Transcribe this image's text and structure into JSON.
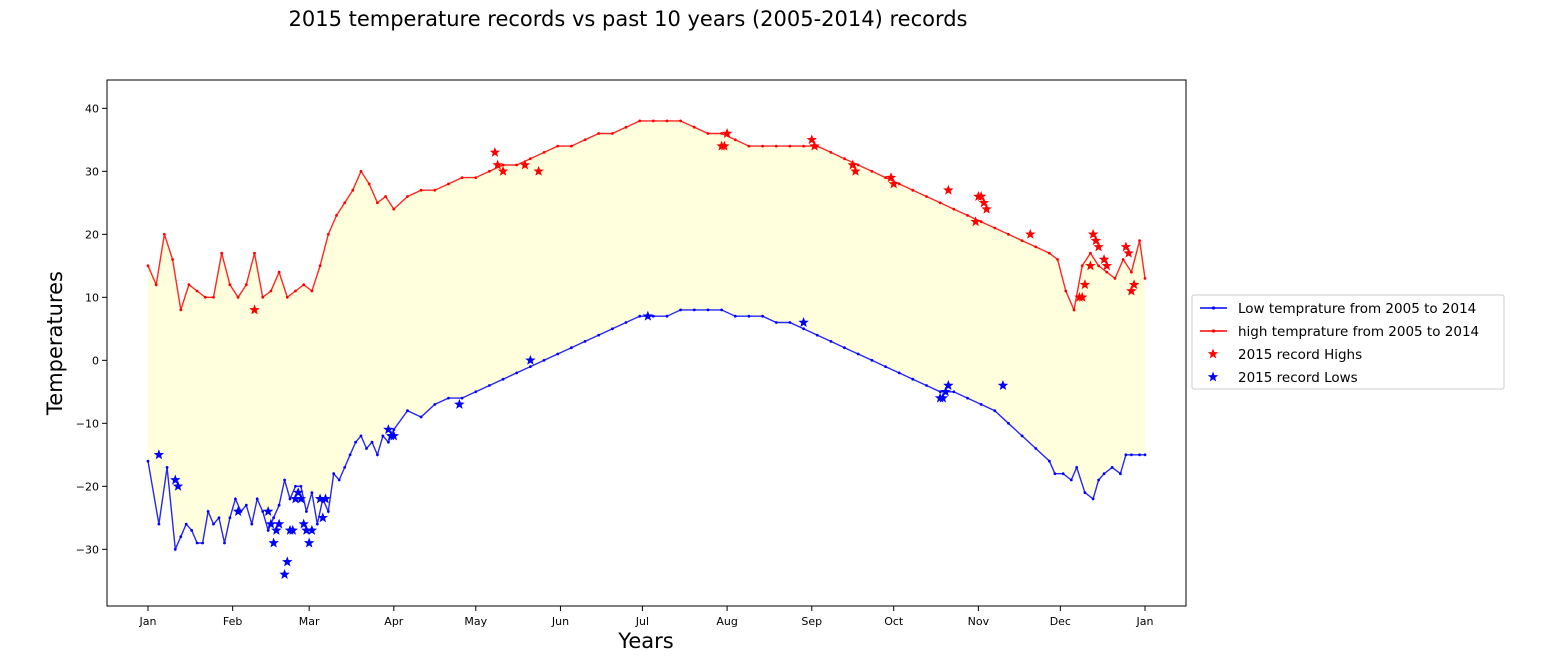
{
  "chart_data": {
    "type": "line",
    "title": "2015 temperature records vs past 10 years (2005-2014) records",
    "xlabel": "Years",
    "ylabel": "Temperatures",
    "ylim": [
      -39,
      44.5
    ],
    "xlim": [
      -15,
      380
    ],
    "yticks": [
      -30,
      -20,
      -10,
      0,
      10,
      20,
      30,
      40
    ],
    "ytick_labels": [
      "−30",
      "−20",
      "−10",
      "0",
      "10",
      "20",
      "30",
      "40"
    ],
    "xticks": [
      0,
      31,
      59,
      90,
      120,
      151,
      181,
      212,
      243,
      273,
      304,
      334,
      365
    ],
    "xtick_labels": [
      "Jan",
      "Feb",
      "Mar",
      "Apr",
      "May",
      "Jun",
      "Jul",
      "Aug",
      "Sep",
      "Oct",
      "Nov",
      "Dec",
      "Jan"
    ],
    "grid": false,
    "fill_between": {
      "color": "#ffffdd",
      "between": [
        "high",
        "low"
      ]
    },
    "legend_position": "right (outside)",
    "series": [
      {
        "id": "low",
        "name": "Low temprature from 2005 to 2014",
        "color": "#0000ff",
        "marker": "dot",
        "x": [
          0,
          4,
          7,
          10,
          12,
          14,
          16,
          18,
          20,
          22,
          24,
          26,
          28,
          30,
          32,
          34,
          36,
          38,
          40,
          42,
          44,
          46,
          48,
          50,
          52,
          54,
          56,
          58,
          60,
          62,
          64,
          66,
          68,
          70,
          72,
          74,
          76,
          78,
          80,
          82,
          84,
          86,
          88,
          90,
          95,
          100,
          105,
          110,
          115,
          120,
          125,
          130,
          135,
          140,
          145,
          150,
          155,
          160,
          165,
          170,
          175,
          180,
          185,
          190,
          195,
          200,
          205,
          210,
          215,
          220,
          225,
          230,
          235,
          240,
          245,
          250,
          255,
          260,
          265,
          270,
          275,
          280,
          285,
          290,
          295,
          300,
          305,
          310,
          315,
          320,
          325,
          330,
          332,
          335,
          338,
          340,
          343,
          346,
          348,
          350,
          353,
          356,
          358,
          360,
          363,
          365
        ],
        "y": [
          -16,
          -26,
          -17,
          -30,
          -28,
          -26,
          -27,
          -29,
          -29,
          -24,
          -26,
          -25,
          -29,
          -25,
          -22,
          -24,
          -23,
          -26,
          -22,
          -24,
          -27,
          -25,
          -23,
          -19,
          -22,
          -20,
          -20,
          -24,
          -21,
          -26,
          -22,
          -24,
          -18,
          -19,
          -17,
          -15,
          -13,
          -12,
          -14,
          -13,
          -15,
          -12,
          -13,
          -11,
          -8,
          -9,
          -7,
          -6,
          -6,
          -5,
          -4,
          -3,
          -2,
          -1,
          0,
          1,
          2,
          3,
          4,
          5,
          6,
          7,
          7,
          7,
          8,
          8,
          8,
          8,
          7,
          7,
          7,
          6,
          6,
          5,
          4,
          3,
          2,
          1,
          0,
          -1,
          -2,
          -3,
          -4,
          -5,
          -5,
          -6,
          -7,
          -8,
          -10,
          -12,
          -14,
          -16,
          -18,
          -18,
          -19,
          -17,
          -21,
          -22,
          -19,
          -18,
          -17,
          -18,
          -15,
          -15,
          -15,
          -15
        ]
      },
      {
        "id": "high",
        "name": "high temprature from 2005 to 2014",
        "color": "#ff0000",
        "marker": "dot",
        "x": [
          0,
          3,
          6,
          9,
          12,
          15,
          18,
          21,
          24,
          27,
          30,
          33,
          36,
          39,
          42,
          45,
          48,
          51,
          54,
          57,
          60,
          63,
          66,
          69,
          72,
          75,
          78,
          81,
          84,
          87,
          90,
          95,
          100,
          105,
          110,
          115,
          120,
          125,
          130,
          135,
          140,
          145,
          150,
          155,
          160,
          165,
          170,
          175,
          180,
          185,
          190,
          195,
          200,
          205,
          210,
          215,
          220,
          225,
          230,
          235,
          240,
          245,
          250,
          255,
          260,
          265,
          270,
          275,
          280,
          285,
          290,
          295,
          300,
          305,
          310,
          315,
          320,
          325,
          330,
          333,
          336,
          339,
          342,
          345,
          348,
          351,
          354,
          357,
          360,
          363,
          365
        ],
        "y": [
          15,
          12,
          20,
          16,
          8,
          12,
          11,
          10,
          10,
          17,
          12,
          10,
          12,
          17,
          10,
          11,
          14,
          10,
          11,
          12,
          11,
          15,
          20,
          23,
          25,
          27,
          30,
          28,
          25,
          26,
          24,
          26,
          27,
          27,
          28,
          29,
          29,
          30,
          31,
          31,
          32,
          33,
          34,
          34,
          35,
          36,
          36,
          37,
          38,
          38,
          38,
          38,
          37,
          36,
          36,
          35,
          34,
          34,
          34,
          34,
          34,
          34,
          33,
          32,
          31,
          30,
          29,
          28,
          27,
          26,
          25,
          24,
          23,
          22,
          21,
          20,
          19,
          18,
          17,
          16,
          11,
          8,
          15,
          17,
          15,
          14,
          13,
          16,
          14,
          19,
          13
        ]
      },
      {
        "id": "record_highs",
        "name": "2015 record Highs",
        "color": "#ff0000",
        "marker": "star",
        "x": [
          39,
          127,
          128,
          130,
          138,
          143,
          210,
          211,
          212,
          243,
          244,
          258,
          259,
          272,
          273,
          293,
          303,
          304,
          305,
          306,
          307,
          323,
          341,
          342,
          343,
          345,
          346,
          347,
          348,
          350,
          351,
          358,
          359,
          360,
          361
        ],
        "y": [
          8,
          33,
          31,
          30,
          31,
          30,
          34,
          34,
          36,
          35,
          34,
          31,
          30,
          29,
          28,
          27,
          22,
          26,
          26,
          25,
          24,
          20,
          10,
          10,
          12,
          15,
          20,
          19,
          18,
          16,
          15,
          18,
          17,
          11,
          12
        ]
      },
      {
        "id": "record_lows",
        "name": "2015 record Lows",
        "color": "#0000ff",
        "marker": "star",
        "x": [
          4,
          10,
          11,
          33,
          44,
          45,
          46,
          47,
          48,
          50,
          51,
          52,
          53,
          54,
          55,
          56,
          57,
          58,
          59,
          60,
          63,
          64,
          65,
          88,
          89,
          90,
          114,
          140,
          183,
          240,
          290,
          291,
          292,
          293,
          313
        ],
        "y": [
          -15,
          -19,
          -20,
          -24,
          -24,
          -26,
          -29,
          -27,
          -26,
          -34,
          -32,
          -27,
          -27,
          -22,
          -21,
          -22,
          -26,
          -27,
          -29,
          -27,
          -22,
          -25,
          -22,
          -11,
          -12,
          -12,
          -7,
          0,
          7,
          6,
          -6,
          -6,
          -5,
          -4,
          -4
        ]
      }
    ]
  }
}
